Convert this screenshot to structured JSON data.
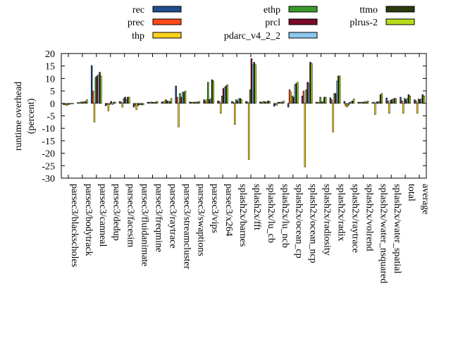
{
  "chart_data": {
    "type": "bar",
    "title": "",
    "xlabel": "",
    "ylabel": "runtime overhead (percent)",
    "ylabel_lines": [
      "runtime overhead",
      "(percent)"
    ],
    "ylim": [
      -30,
      20
    ],
    "yticks": [
      20,
      15,
      10,
      5,
      0,
      -5,
      -10,
      -15,
      -20,
      -25,
      -30
    ],
    "grid": false,
    "legend_position": "top",
    "categories": [
      "parsec3/blackscholes",
      "parsec3/bodytrack",
      "parsec3/canneal",
      "parsec3/dedup",
      "parsec3/facesim",
      "parsec3/fluidanimate",
      "parsec3/freqmine",
      "parsec3/raytrace",
      "parsec3/streamcluster",
      "parsec3/swaptions",
      "parsec3/vips",
      "parsec3/x264",
      "splash2x/barnes",
      "splash2x/fft",
      "splash2x/lu_cb",
      "splash2x/lu_ncb",
      "splash2x/ocean_cp",
      "splash2x/ocean_ncp",
      "splash2x/radiosity",
      "splash2x/radix",
      "splash2x/raytrace",
      "splash2x/volrend",
      "splash2x/water_nsquared",
      "splash2x/water_spatial",
      "total",
      "average"
    ],
    "series": [
      {
        "name": "rec",
        "color": "#1f4f8f",
        "values": [
          -0.5,
          0.3,
          15.2,
          -1.0,
          0.8,
          -1.5,
          0.5,
          0.6,
          7.0,
          0.6,
          1.5,
          1.0,
          0.8,
          0.8,
          0.6,
          -1.2,
          -1.5,
          3.0,
          0.5,
          2.3,
          0.8,
          0.5,
          0.3,
          2.2,
          2.5,
          1.5
        ]
      },
      {
        "name": "prec",
        "color": "#ff4a1a",
        "values": [
          -0.6,
          0.3,
          5.0,
          -0.5,
          0.5,
          -0.8,
          0.4,
          0.5,
          2.5,
          0.4,
          1.0,
          0.8,
          0.5,
          0.6,
          0.4,
          -0.5,
          5.5,
          5.0,
          0.4,
          1.5,
          -1.0,
          0.4,
          0.5,
          1.0,
          1.0,
          1.0
        ]
      },
      {
        "name": "thp",
        "color": "#ffd21a",
        "values": [
          -0.8,
          0.5,
          -7.5,
          -3.0,
          -1.5,
          -2.5,
          0.6,
          1.0,
          -9.5,
          0.5,
          1.5,
          -4.0,
          -8.5,
          -22.5,
          0.7,
          -0.8,
          4.5,
          -25.5,
          0.5,
          -11.5,
          -1.5,
          0.5,
          -4.5,
          -4.0,
          -4.0,
          -4.0
        ]
      },
      {
        "name": "ethp",
        "color": "#3a9a2a",
        "values": [
          -0.6,
          0.6,
          10.5,
          -0.5,
          2.0,
          -1.0,
          0.5,
          1.5,
          4.0,
          0.5,
          8.5,
          3.0,
          1.5,
          5.5,
          0.8,
          0.5,
          3.0,
          5.5,
          2.5,
          4.0,
          -0.8,
          0.5,
          0.6,
          1.2,
          2.0,
          1.8
        ]
      },
      {
        "name": "prcl",
        "color": "#7a0a2a",
        "values": [
          -0.4,
          0.5,
          11.0,
          0.8,
          2.5,
          -0.6,
          0.4,
          1.0,
          2.5,
          0.4,
          1.5,
          6.0,
          1.0,
          18.0,
          0.5,
          0.4,
          2.5,
          8.5,
          0.6,
          4.0,
          0.4,
          0.5,
          0.6,
          1.5,
          1.5,
          1.5
        ]
      },
      {
        "name": "pdarc_v4_2_2",
        "color": "#8ac8f0",
        "values": [
          -0.3,
          0.8,
          11.5,
          -0.5,
          1.5,
          -0.5,
          0.5,
          0.8,
          4.5,
          0.6,
          1.8,
          6.5,
          1.8,
          15.5,
          0.7,
          0.5,
          7.5,
          8.0,
          0.8,
          9.0,
          0.6,
          0.8,
          0.8,
          1.8,
          2.0,
          1.8
        ]
      },
      {
        "name": "ttmo",
        "color": "#2a3a0a",
        "values": [
          -0.2,
          0.8,
          12.5,
          0.5,
          2.5,
          -0.6,
          0.5,
          0.8,
          4.5,
          0.5,
          9.5,
          7.0,
          2.0,
          16.5,
          1.0,
          0.5,
          8.0,
          16.5,
          2.5,
          11.0,
          1.0,
          0.5,
          3.5,
          2.0,
          3.5,
          3.5
        ]
      },
      {
        "name": "plrus-2",
        "color": "#b8dc1a",
        "values": [
          -0.2,
          1.5,
          11.0,
          0.5,
          2.5,
          -0.6,
          0.8,
          2.0,
          5.0,
          0.8,
          9.0,
          7.5,
          1.5,
          15.5,
          0.8,
          1.0,
          8.5,
          16.0,
          2.5,
          11.0,
          1.8,
          1.0,
          4.0,
          2.0,
          3.0,
          3.0
        ]
      }
    ]
  }
}
